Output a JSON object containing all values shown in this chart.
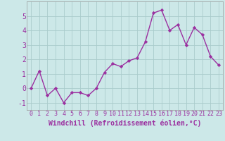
{
  "x": [
    0,
    1,
    2,
    3,
    4,
    5,
    6,
    7,
    8,
    9,
    10,
    11,
    12,
    13,
    14,
    15,
    16,
    17,
    18,
    19,
    20,
    21,
    22,
    23
  ],
  "y": [
    0,
    1.2,
    -0.5,
    0,
    -1.0,
    -0.3,
    -0.3,
    -0.5,
    0,
    1.1,
    1.7,
    1.5,
    1.9,
    2.1,
    3.2,
    5.2,
    5.4,
    4.0,
    4.4,
    3.0,
    4.2,
    3.7,
    2.2,
    1.6
  ],
  "line_color": "#9b30a0",
  "marker": "D",
  "marker_size": 2.2,
  "line_width": 1.0,
  "bg_color": "#cce8e8",
  "grid_color": "#aacccc",
  "xlabel": "Windchill (Refroidissement éolien,°C)",
  "xlabel_fontsize": 7,
  "xlabel_color": "#9b30a0",
  "tick_color": "#9b30a0",
  "tick_fontsize": 6,
  "ylim": [
    -1.5,
    6.0
  ],
  "yticks": [
    -1,
    0,
    1,
    2,
    3,
    4,
    5
  ],
  "xlim": [
    -0.5,
    23.5
  ],
  "xticks": [
    0,
    1,
    2,
    3,
    4,
    5,
    6,
    7,
    8,
    9,
    10,
    11,
    12,
    13,
    14,
    15,
    16,
    17,
    18,
    19,
    20,
    21,
    22,
    23
  ]
}
